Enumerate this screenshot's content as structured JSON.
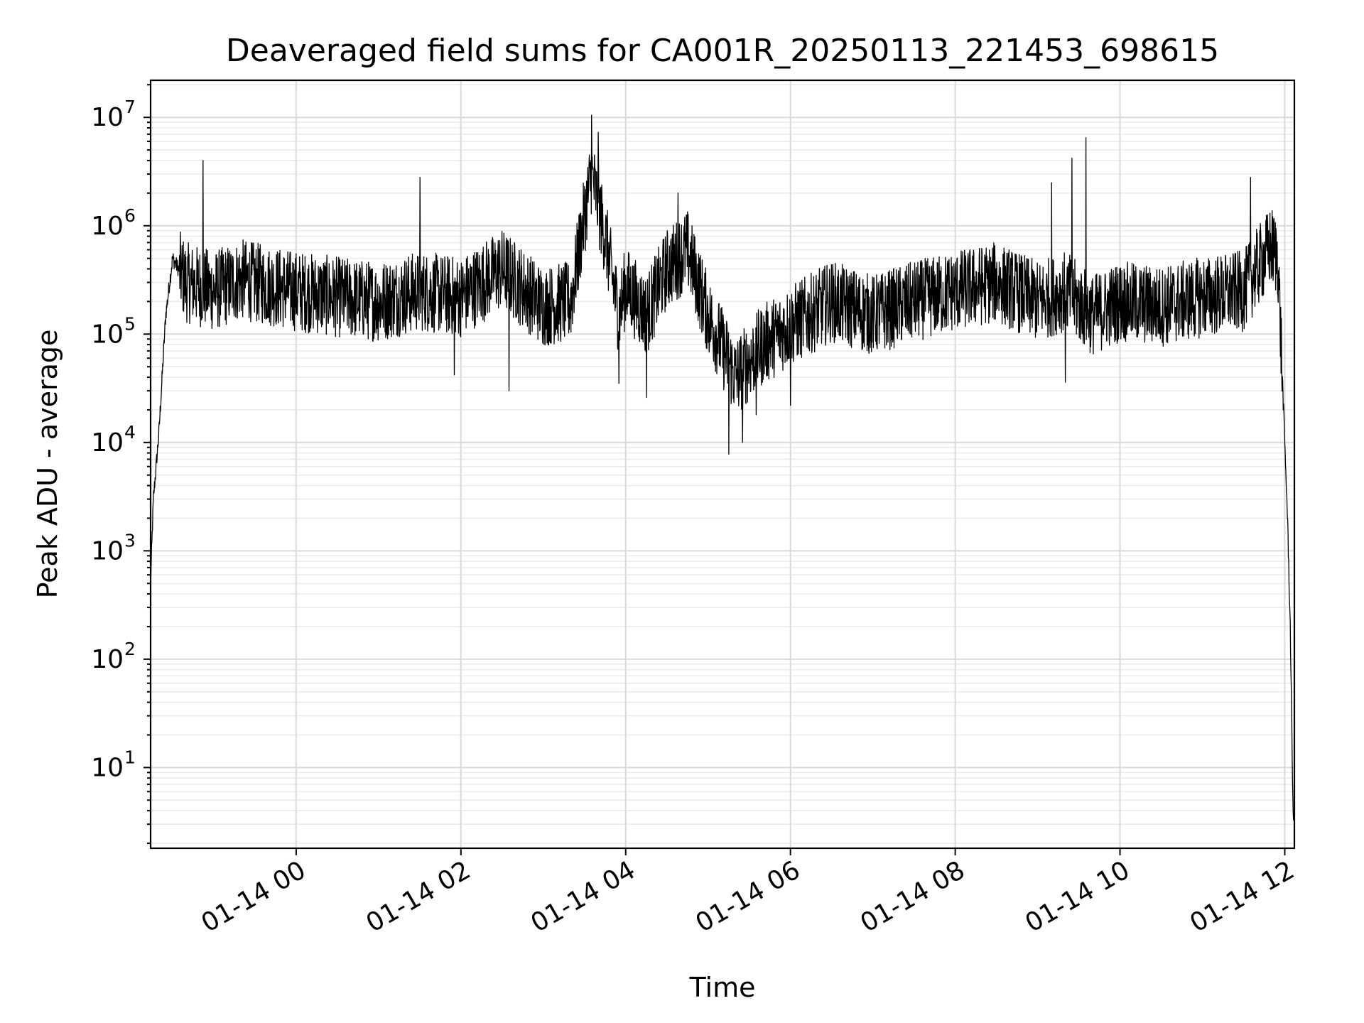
{
  "chart_data": {
    "type": "line",
    "title": "Deaveraged field sums for CA001R_20250113_221453_698615",
    "xlabel": "Time",
    "ylabel": "Peak ADU - average",
    "yscale": "log",
    "grid": true,
    "grid_which": "both",
    "line_color": "#000000",
    "x_tick_labels": [
      "01-14 00",
      "01-14 02",
      "01-14 04",
      "01-14 06",
      "01-14 08",
      "01-14 10",
      "01-14 12"
    ],
    "x_tick_dates": [
      "2025-01-14 00:00",
      "2025-01-14 02:00",
      "2025-01-14 04:00",
      "2025-01-14 06:00",
      "2025-01-14 08:00",
      "2025-01-14 10:00",
      "2025-01-14 12:00"
    ],
    "y_ticks": [
      {
        "base": "10",
        "exp": "1"
      },
      {
        "base": "10",
        "exp": "2"
      },
      {
        "base": "10",
        "exp": "3"
      },
      {
        "base": "10",
        "exp": "4"
      },
      {
        "base": "10",
        "exp": "5"
      },
      {
        "base": "10",
        "exp": "6"
      },
      {
        "base": "10",
        "exp": "7"
      }
    ],
    "xlim": [
      "2025-01-13 22:14",
      "2025-01-14 12:07"
    ],
    "ylim": [
      1.8,
      22000000
    ],
    "series": [
      {
        "x": [
          "2025-01-13 22:14",
          "2025-01-13 22:16",
          "2025-01-13 22:20",
          "2025-01-13 22:25",
          "2025-01-13 22:30",
          "2025-01-13 22:40",
          "2025-01-13 23:00",
          "2025-01-13 23:20",
          "2025-01-13 23:40",
          "2025-01-14 00:00",
          "2025-01-14 00:30",
          "2025-01-14 01:00",
          "2025-01-14 01:30",
          "2025-01-14 02:00",
          "2025-01-14 02:30",
          "2025-01-14 03:00",
          "2025-01-14 03:20",
          "2025-01-14 03:35",
          "2025-01-14 03:45",
          "2025-01-14 03:55",
          "2025-01-14 04:00",
          "2025-01-14 04:15",
          "2025-01-14 04:30",
          "2025-01-14 04:45",
          "2025-01-14 05:00",
          "2025-01-14 05:20",
          "2025-01-14 05:40",
          "2025-01-14 06:00",
          "2025-01-14 06:30",
          "2025-01-14 07:00",
          "2025-01-14 07:30",
          "2025-01-14 08:00",
          "2025-01-14 08:30",
          "2025-01-14 09:00",
          "2025-01-14 09:20",
          "2025-01-14 09:40",
          "2025-01-14 10:00",
          "2025-01-14 10:30",
          "2025-01-14 11:00",
          "2025-01-14 11:30",
          "2025-01-14 11:50",
          "2025-01-14 11:55",
          "2025-01-14 12:00",
          "2025-01-14 12:02",
          "2025-01-14 12:04",
          "2025-01-14 12:06",
          "2025-01-14 12:07"
        ],
        "y": [
          500,
          3000,
          12000,
          150000,
          500000,
          300000,
          250000,
          320000,
          280000,
          250000,
          220000,
          200000,
          250000,
          220000,
          400000,
          180000,
          200000,
          3000000,
          800000,
          150000,
          280000,
          150000,
          400000,
          600000,
          150000,
          40000,
          80000,
          120000,
          200000,
          150000,
          200000,
          250000,
          300000,
          200000,
          250000,
          150000,
          200000,
          180000,
          220000,
          250000,
          650000,
          500000,
          10000,
          2000,
          200,
          4,
          3.5
        ],
        "line_width": 1.3
      }
    ],
    "spikes": [
      {
        "x": "2025-01-13 22:52",
        "y": 4000000
      },
      {
        "x": "2025-01-14 01:30",
        "y": 2800000
      },
      {
        "x": "2025-01-14 03:35",
        "y": 10500000
      },
      {
        "x": "2025-01-14 03:40",
        "y": 7300000
      },
      {
        "x": "2025-01-14 04:38",
        "y": 2000000
      },
      {
        "x": "2025-01-14 09:10",
        "y": 2500000
      },
      {
        "x": "2025-01-14 09:25",
        "y": 4200000
      },
      {
        "x": "2025-01-14 09:35",
        "y": 6500000
      },
      {
        "x": "2025-01-14 11:35",
        "y": 2800000
      }
    ],
    "dips": [
      {
        "x": "2025-01-14 01:55",
        "y": 42000
      },
      {
        "x": "2025-01-14 02:35",
        "y": 30000
      },
      {
        "x": "2025-01-14 03:55",
        "y": 35000
      },
      {
        "x": "2025-01-14 04:15",
        "y": 26000
      },
      {
        "x": "2025-01-14 05:15",
        "y": 7800
      },
      {
        "x": "2025-01-14 05:25",
        "y": 10000
      },
      {
        "x": "2025-01-14 05:35",
        "y": 18000
      },
      {
        "x": "2025-01-14 06:00",
        "y": 22000
      },
      {
        "x": "2025-01-14 09:20",
        "y": 36000
      }
    ]
  }
}
